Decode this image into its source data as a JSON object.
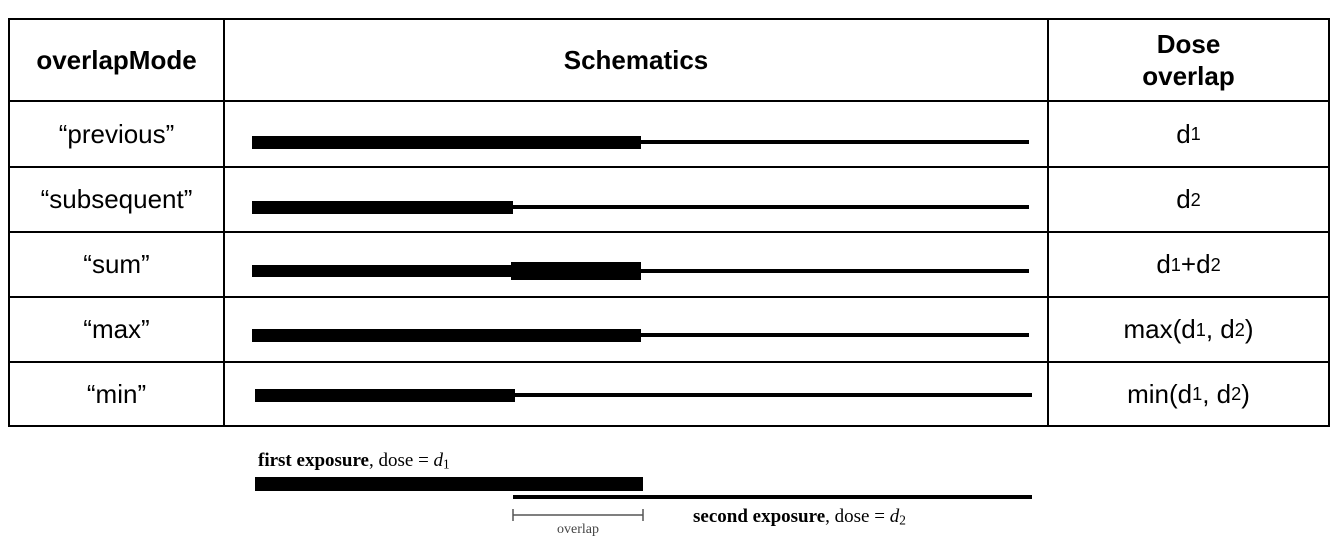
{
  "table": {
    "headers": {
      "mode": "overlapMode",
      "schematics": "Schematics",
      "dose_line1": "Dose",
      "dose_line2": "overlap"
    },
    "rows": [
      {
        "mode": "“previous”",
        "dose": {
          "a": "d",
          "a_sub": "1"
        }
      },
      {
        "mode": "“subsequent”",
        "dose": {
          "a": "d",
          "a_sub": "2"
        }
      },
      {
        "mode": "“sum”",
        "dose": {
          "a": "d",
          "a_sub": "1",
          "b": "+d",
          "b_sub": "2"
        }
      },
      {
        "mode": "“max”",
        "dose": {
          "a": "max(d",
          "a_sub": "1",
          "b": ", d",
          "b_sub": "2",
          "c": ")"
        }
      },
      {
        "mode": "“min”",
        "dose": {
          "a": "min(d",
          "a_sub": "1",
          "b": ", d",
          "b_sub": "2",
          "c": ")"
        }
      }
    ]
  },
  "legend": {
    "first_bold": "first exposure",
    "first_rest": ", dose = ",
    "first_var": "d",
    "first_sub": "1",
    "second_bold": "second exposure",
    "second_rest": ", dose = ",
    "second_var": "d",
    "second_sub": "2",
    "overlap": "overlap"
  }
}
